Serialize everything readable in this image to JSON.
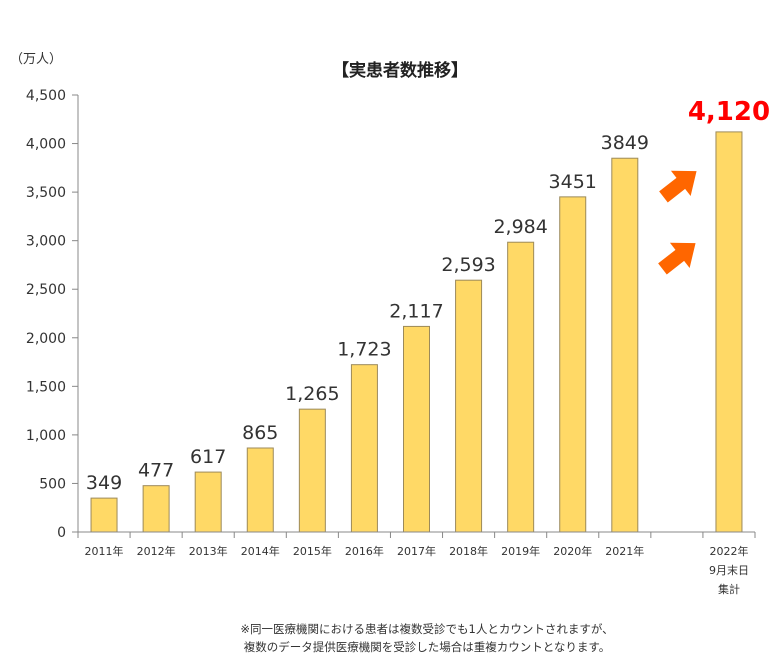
{
  "chart_data": {
    "type": "bar",
    "title": "【実患者数推移】",
    "unit_label": "（万人）",
    "categories": [
      [
        "2011年"
      ],
      [
        "2012年"
      ],
      [
        "2013年"
      ],
      [
        "2014年"
      ],
      [
        "2015年"
      ],
      [
        "2016年"
      ],
      [
        "2017年"
      ],
      [
        "2018年"
      ],
      [
        "2019年"
      ],
      [
        "2020年"
      ],
      [
        "2021年"
      ],
      [
        ""
      ],
      [
        "2022年",
        "9月末日",
        "集計"
      ]
    ],
    "values": [
      349,
      477,
      617,
      865,
      1265,
      1723,
      2117,
      2593,
      2984,
      3451,
      3849,
      null,
      4120
    ],
    "data_labels": [
      "349",
      "477",
      "617",
      "865",
      "1,265",
      "1,723",
      "2,117",
      "2,593",
      "2,984",
      "3451",
      "3849",
      "",
      "4,120"
    ],
    "highlight_index": 12,
    "ylim": [
      0,
      4500
    ],
    "yticks": [
      0,
      500,
      1000,
      1500,
      2000,
      2500,
      3000,
      3500,
      4000,
      4500
    ],
    "ytick_labels": [
      "0",
      "500",
      "1,000",
      "1,500",
      "2,000",
      "2,500",
      "3,000",
      "3,500",
      "4,000",
      "4,500"
    ],
    "grid": false,
    "colors": {
      "bar": "#FFD966",
      "bar_stroke": "#9c8a5a",
      "highlight_label": "#ff0000",
      "arrow": "#ff6600"
    },
    "footnote": [
      "※同一医療機関における患者は複数受診でも1人とカウントされますが、",
      "複数のデータ提供医療機関を受診した場合は重複カウントとなります。"
    ]
  }
}
